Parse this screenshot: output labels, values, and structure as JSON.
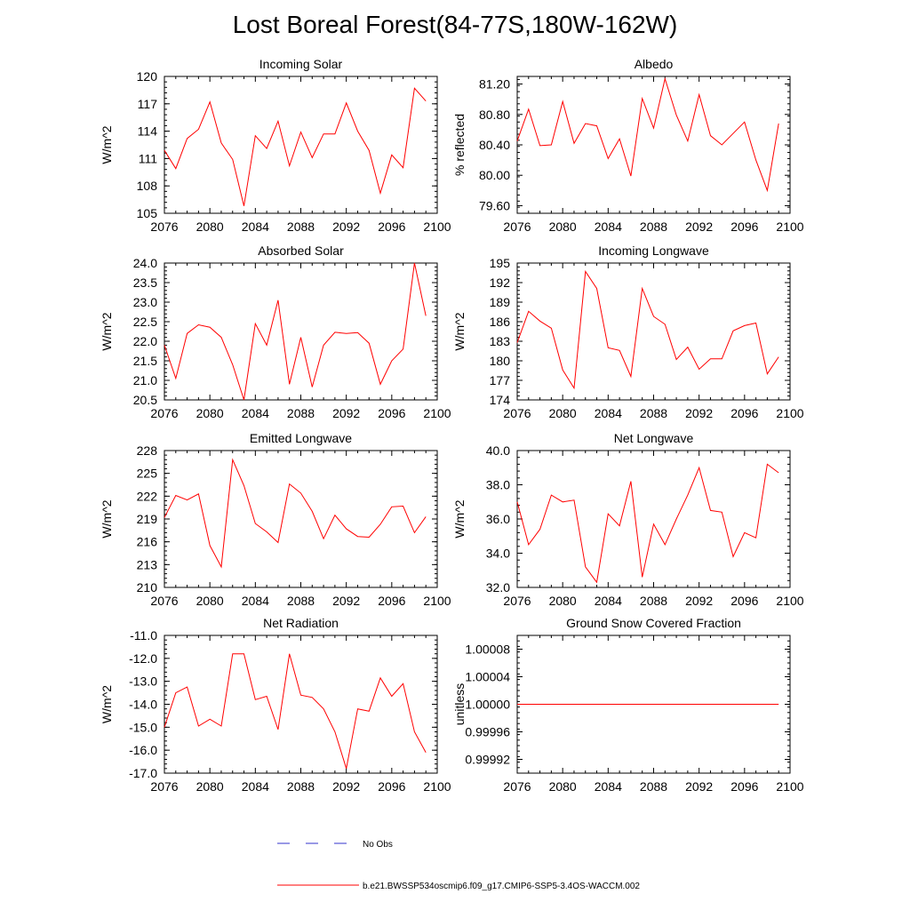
{
  "title": "Lost Boreal Forest(84-77S,180W-162W)",
  "legend": {
    "obs_label": "No Obs",
    "obs_color": "#3333cc",
    "model_label": "b.e21.BWSSP534oscmip6.f09_g17.CMIP6-SSP5-3.4OS-WACCM.002",
    "model_color": "#ff0000"
  },
  "chart_data": [
    {
      "type": "line",
      "title": "Incoming Solar",
      "ylabel": "W/m^2",
      "xlabel": "",
      "xlim": [
        2076,
        2100
      ],
      "ylim": [
        105,
        120
      ],
      "xticks": [
        "2076",
        "2080",
        "2084",
        "2088",
        "2092",
        "2096",
        "2100"
      ],
      "yticks": [
        "105",
        "108",
        "111",
        "114",
        "117",
        "120"
      ],
      "series": [
        {
          "name": "b.e21.BWSSP534oscmip6.f09_g17.CMIP6-SSP5-3.4OS-WACCM.002",
          "x": [
            2076,
            2077,
            2078,
            2079,
            2080,
            2081,
            2082,
            2083,
            2084,
            2085,
            2086,
            2087,
            2088,
            2089,
            2090,
            2091,
            2092,
            2093,
            2094,
            2095,
            2096,
            2097,
            2098,
            2099
          ],
          "values": [
            111.9,
            109.9,
            113.2,
            114.2,
            117.2,
            112.7,
            110.9,
            105.8,
            113.5,
            112.1,
            115.1,
            110.2,
            113.9,
            111.1,
            113.7,
            113.7,
            117.1,
            114.0,
            111.9,
            107.2,
            111.4,
            110.0,
            118.7,
            117.3
          ]
        }
      ]
    },
    {
      "type": "line",
      "title": "Albedo",
      "ylabel": "% reflected",
      "xlabel": "",
      "xlim": [
        2076,
        2100
      ],
      "ylim": [
        79.5,
        81.3
      ],
      "xticks": [
        "2076",
        "2080",
        "2084",
        "2088",
        "2092",
        "2096",
        "2100"
      ],
      "yticks": [
        "79.60",
        "80.00",
        "80.40",
        "80.80",
        "81.20"
      ],
      "series": [
        {
          "name": "b.e21.BWSSP534oscmip6.f09_g17.CMIP6-SSP5-3.4OS-WACCM.002",
          "x": [
            2076,
            2077,
            2078,
            2079,
            2080,
            2081,
            2082,
            2083,
            2084,
            2085,
            2086,
            2087,
            2088,
            2089,
            2090,
            2091,
            2092,
            2093,
            2094,
            2095,
            2096,
            2097,
            2098,
            2099
          ],
          "values": [
            80.45,
            80.87,
            80.39,
            80.4,
            80.97,
            80.42,
            80.68,
            80.65,
            80.22,
            80.48,
            79.99,
            81.01,
            80.62,
            81.27,
            80.79,
            80.45,
            81.06,
            80.52,
            80.4,
            80.55,
            80.7,
            80.2,
            79.8,
            80.68
          ]
        }
      ]
    },
    {
      "type": "line",
      "title": "Absorbed Solar",
      "ylabel": "W/m^2",
      "xlabel": "",
      "xlim": [
        2076,
        2100
      ],
      "ylim": [
        20.5,
        24.0
      ],
      "xticks": [
        "2076",
        "2080",
        "2084",
        "2088",
        "2092",
        "2096",
        "2100"
      ],
      "yticks": [
        "20.5",
        "21.0",
        "21.5",
        "22.0",
        "22.5",
        "23.0",
        "23.5",
        "24.0"
      ],
      "series": [
        {
          "name": "b.e21.BWSSP534oscmip6.f09_g17.CMIP6-SSP5-3.4OS-WACCM.002",
          "x": [
            2076,
            2077,
            2078,
            2079,
            2080,
            2081,
            2082,
            2083,
            2084,
            2085,
            2086,
            2087,
            2088,
            2089,
            2090,
            2091,
            2092,
            2093,
            2094,
            2095,
            2096,
            2097,
            2098,
            2099
          ],
          "values": [
            21.9,
            21.05,
            22.2,
            22.42,
            22.36,
            22.1,
            21.4,
            20.5,
            22.45,
            21.9,
            23.05,
            20.9,
            22.1,
            20.83,
            21.9,
            22.23,
            22.2,
            22.22,
            21.95,
            20.9,
            21.5,
            21.8,
            24.0,
            22.65
          ]
        }
      ]
    },
    {
      "type": "line",
      "title": "Incoming Longwave",
      "ylabel": "W/m^2",
      "xlabel": "",
      "xlim": [
        2076,
        2100
      ],
      "ylim": [
        174,
        195
      ],
      "xticks": [
        "2076",
        "2080",
        "2084",
        "2088",
        "2092",
        "2096",
        "2100"
      ],
      "yticks": [
        "174",
        "177",
        "180",
        "183",
        "186",
        "189",
        "192",
        "195"
      ],
      "series": [
        {
          "name": "b.e21.BWSSP534oscmip6.f09_g17.CMIP6-SSP5-3.4OS-WACCM.002",
          "x": [
            2076,
            2077,
            2078,
            2079,
            2080,
            2081,
            2082,
            2083,
            2084,
            2085,
            2086,
            2087,
            2088,
            2089,
            2090,
            2091,
            2092,
            2093,
            2094,
            2095,
            2096,
            2097,
            2098,
            2099
          ],
          "values": [
            182.8,
            187.6,
            186.1,
            185.0,
            178.6,
            175.8,
            193.7,
            191.1,
            182.0,
            181.6,
            177.6,
            191.1,
            186.8,
            185.6,
            180.2,
            182.1,
            178.7,
            180.3,
            180.3,
            184.6,
            185.4,
            185.8,
            178.0,
            180.6
          ]
        }
      ]
    },
    {
      "type": "line",
      "title": "Emitted Longwave",
      "ylabel": "W/m^2",
      "xlabel": "",
      "xlim": [
        2076,
        2100
      ],
      "ylim": [
        210,
        228
      ],
      "xticks": [
        "2076",
        "2080",
        "2084",
        "2088",
        "2092",
        "2096",
        "2100"
      ],
      "yticks": [
        "210",
        "213",
        "216",
        "219",
        "222",
        "225",
        "228"
      ],
      "series": [
        {
          "name": "b.e21.BWSSP534oscmip6.f09_g17.CMIP6-SSP5-3.4OS-WACCM.002",
          "x": [
            2076,
            2077,
            2078,
            2079,
            2080,
            2081,
            2082,
            2083,
            2084,
            2085,
            2086,
            2087,
            2088,
            2089,
            2090,
            2091,
            2092,
            2093,
            2094,
            2095,
            2096,
            2097,
            2098,
            2099
          ],
          "values": [
            219.2,
            222.1,
            221.5,
            222.3,
            215.5,
            212.7,
            226.8,
            223.4,
            218.4,
            217.3,
            215.9,
            223.6,
            222.4,
            220.0,
            216.4,
            219.5,
            217.7,
            216.7,
            216.6,
            218.3,
            220.6,
            220.7,
            217.2,
            219.3
          ]
        }
      ]
    },
    {
      "type": "line",
      "title": "Net Longwave",
      "ylabel": "W/m^2",
      "xlabel": "",
      "xlim": [
        2076,
        2100
      ],
      "ylim": [
        32.0,
        40.0
      ],
      "xticks": [
        "2076",
        "2080",
        "2084",
        "2088",
        "2092",
        "2096",
        "2100"
      ],
      "yticks": [
        "32.0",
        "34.0",
        "36.0",
        "38.0",
        "40.0"
      ],
      "series": [
        {
          "name": "b.e21.BWSSP534oscmip6.f09_g17.CMIP6-SSP5-3.4OS-WACCM.002",
          "x": [
            2076,
            2077,
            2078,
            2079,
            2080,
            2081,
            2082,
            2083,
            2084,
            2085,
            2086,
            2087,
            2088,
            2089,
            2090,
            2091,
            2092,
            2093,
            2094,
            2095,
            2096,
            2097,
            2098,
            2099
          ],
          "values": [
            37.0,
            34.5,
            35.4,
            37.4,
            37.0,
            37.1,
            33.2,
            32.3,
            36.3,
            35.6,
            38.2,
            32.6,
            35.7,
            34.5,
            36.0,
            37.4,
            39.0,
            36.5,
            36.4,
            33.8,
            35.2,
            34.9,
            39.2,
            38.7
          ]
        }
      ]
    },
    {
      "type": "line",
      "title": "Net Radiation",
      "ylabel": "W/m^2",
      "xlabel": "",
      "xlim": [
        2076,
        2100
      ],
      "ylim": [
        -17.0,
        -11.0
      ],
      "xticks": [
        "2076",
        "2080",
        "2084",
        "2088",
        "2092",
        "2096",
        "2100"
      ],
      "yticks": [
        "-17.0",
        "-16.0",
        "-15.0",
        "-14.0",
        "-13.0",
        "-12.0",
        "-11.0"
      ],
      "series": [
        {
          "name": "b.e21.BWSSP534oscmip6.f09_g17.CMIP6-SSP5-3.4OS-WACCM.002",
          "x": [
            2076,
            2077,
            2078,
            2079,
            2080,
            2081,
            2082,
            2083,
            2084,
            2085,
            2086,
            2087,
            2088,
            2089,
            2090,
            2091,
            2092,
            2093,
            2094,
            2095,
            2096,
            2097,
            2098,
            2099
          ],
          "values": [
            -15.0,
            -13.5,
            -13.25,
            -14.95,
            -14.65,
            -14.95,
            -11.8,
            -11.8,
            -13.8,
            -13.65,
            -15.1,
            -11.8,
            -13.6,
            -13.7,
            -14.2,
            -15.2,
            -16.8,
            -14.2,
            -14.3,
            -12.85,
            -13.65,
            -13.1,
            -15.2,
            -16.1
          ]
        }
      ]
    },
    {
      "type": "line",
      "title": "Ground Snow Covered Fraction",
      "ylabel": "unitless",
      "xlabel": "",
      "xlim": [
        2076,
        2100
      ],
      "ylim": [
        0.9999,
        1.0001
      ],
      "xticks": [
        "2076",
        "2080",
        "2084",
        "2088",
        "2092",
        "2096",
        "2100"
      ],
      "yticks": [
        "0.99992",
        "0.99996",
        "1.00000",
        "1.00004",
        "1.00008"
      ],
      "series": [
        {
          "name": "b.e21.BWSSP534oscmip6.f09_g17.CMIP6-SSP5-3.4OS-WACCM.002",
          "x": [
            2076,
            2077,
            2078,
            2079,
            2080,
            2081,
            2082,
            2083,
            2084,
            2085,
            2086,
            2087,
            2088,
            2089,
            2090,
            2091,
            2092,
            2093,
            2094,
            2095,
            2096,
            2097,
            2098,
            2099
          ],
          "values": [
            1,
            1,
            1,
            1,
            1,
            1,
            1,
            1,
            1,
            1,
            1,
            1,
            1,
            1,
            1,
            1,
            1,
            1,
            1,
            1,
            1,
            1,
            1,
            1
          ]
        }
      ]
    }
  ]
}
